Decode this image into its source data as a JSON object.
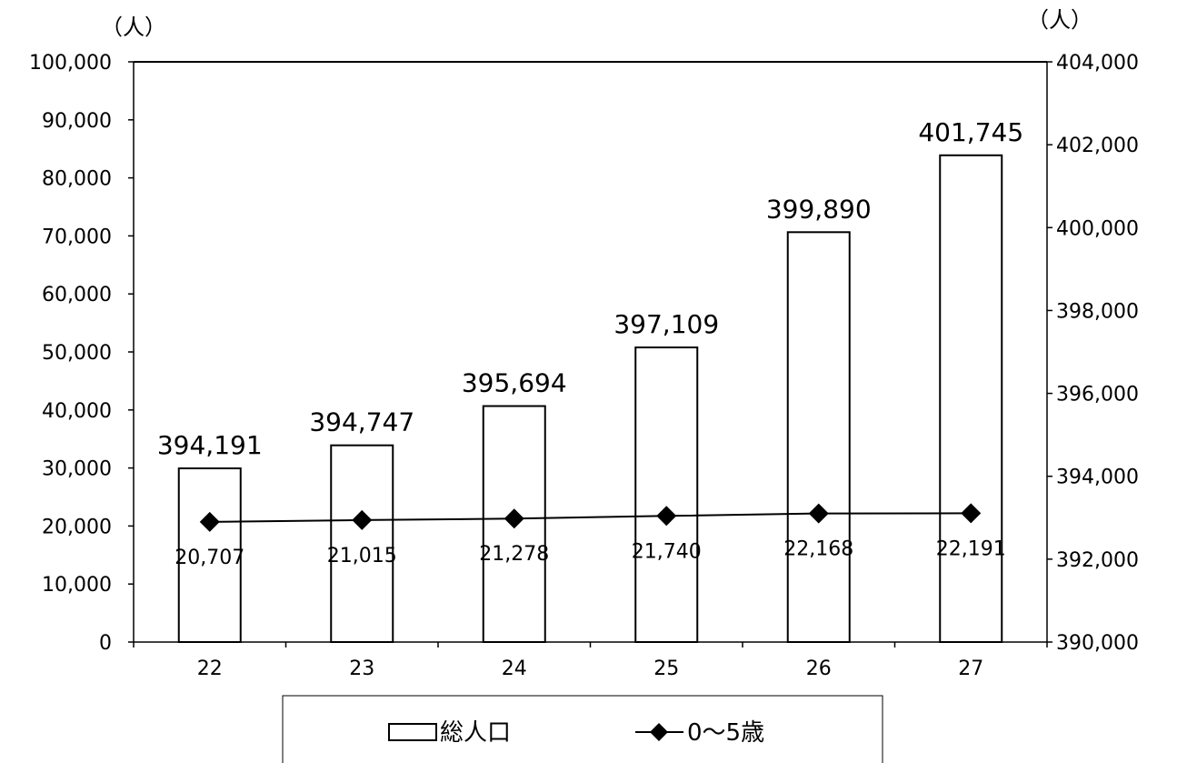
{
  "chart_data": {
    "type": "bar",
    "categories": [
      "22",
      "23",
      "24",
      "25",
      "26",
      "27"
    ],
    "series": [
      {
        "name": "総人口",
        "type": "bar",
        "axis": "right",
        "values": [
          394191,
          394747,
          395694,
          397109,
          399890,
          401745
        ],
        "labels": [
          "394,191",
          "394,747",
          "395,694",
          "397,109",
          "399,890",
          "401,745"
        ]
      },
      {
        "name": "0～5歳",
        "type": "line",
        "axis": "left",
        "marker": "diamond",
        "values": [
          20707,
          21015,
          21278,
          21740,
          22168,
          22191
        ],
        "labels": [
          "20,707",
          "21,015",
          "21,278",
          "21,740",
          "22,168",
          "22,191"
        ]
      }
    ],
    "y_left": {
      "unit": "（人）",
      "ylim": [
        0,
        100000
      ],
      "ticks": [
        0,
        10000,
        20000,
        30000,
        40000,
        50000,
        60000,
        70000,
        80000,
        90000,
        100000
      ],
      "tick_labels": [
        "0",
        "10,000",
        "20,000",
        "30,000",
        "40,000",
        "50,000",
        "60,000",
        "70,000",
        "80,000",
        "90,000",
        "100,000"
      ]
    },
    "y_right": {
      "unit": "（人）",
      "ylim": [
        390000,
        404000
      ],
      "ticks": [
        390000,
        392000,
        394000,
        396000,
        398000,
        400000,
        402000,
        404000
      ],
      "tick_labels": [
        "390,000",
        "392,000",
        "394,000",
        "396,000",
        "398,000",
        "400,000",
        "402,000",
        "404,000"
      ]
    },
    "grid": false,
    "legend": {
      "position": "bottom",
      "entries": [
        {
          "label": "総人口",
          "symbol": "bar"
        },
        {
          "label": "0～5歳",
          "symbol": "line-diamond"
        }
      ]
    },
    "colors": {
      "bar_fill": "#ffffff",
      "bar_stroke": "#000000",
      "line": "#000000"
    }
  }
}
